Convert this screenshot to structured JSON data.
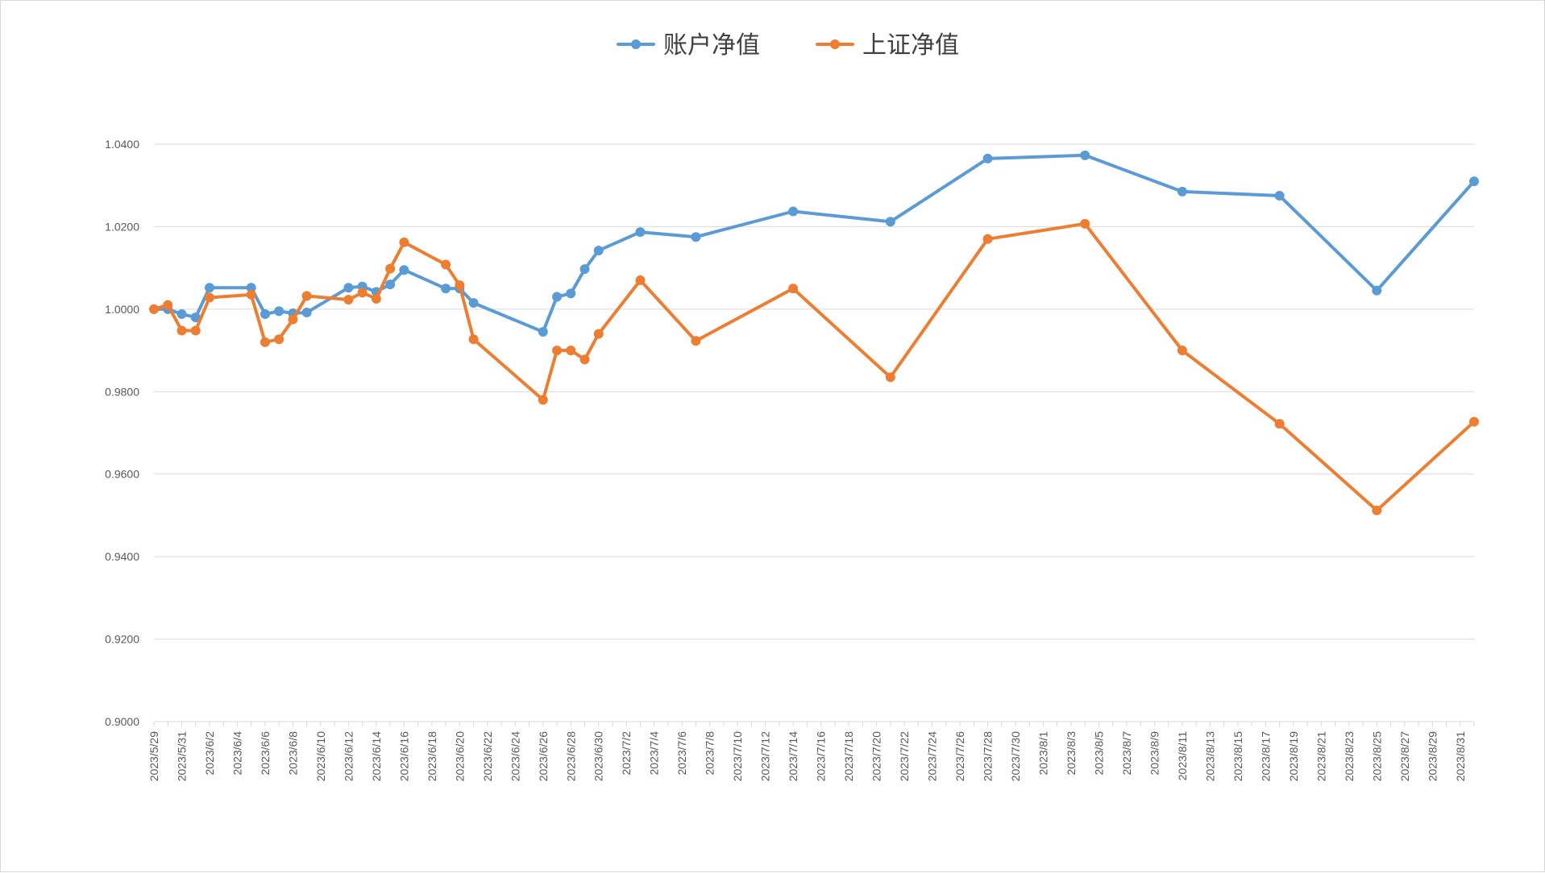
{
  "chart_data": {
    "type": "line",
    "title": "",
    "xlabel": "",
    "ylabel": "",
    "ylim": [
      0.9,
      1.04
    ],
    "yticks": [
      "0.9000",
      "0.9200",
      "0.9400",
      "0.9600",
      "0.9800",
      "1.0000",
      "1.0200",
      "1.0400"
    ],
    "grid": true,
    "legend_position": "top-center",
    "x_start": "2023/5/29",
    "x_end": "2023/9/1",
    "xtick_labels": [
      "2023/5/29",
      "2023/5/31",
      "2023/6/2",
      "2023/6/4",
      "2023/6/6",
      "2023/6/8",
      "2023/6/10",
      "2023/6/12",
      "2023/6/14",
      "2023/6/16",
      "2023/6/18",
      "2023/6/20",
      "2023/6/22",
      "2023/6/24",
      "2023/6/26",
      "2023/6/28",
      "2023/6/30",
      "2023/7/2",
      "2023/7/4",
      "2023/7/6",
      "2023/7/8",
      "2023/7/10",
      "2023/7/12",
      "2023/7/14",
      "2023/7/16",
      "2023/7/18",
      "2023/7/20",
      "2023/7/22",
      "2023/7/24",
      "2023/7/26",
      "2023/7/28",
      "2023/7/30",
      "2023/8/1",
      "2023/8/3",
      "2023/8/5",
      "2023/8/7",
      "2023/8/9",
      "2023/8/11",
      "2023/8/13",
      "2023/8/15",
      "2023/8/17",
      "2023/8/19",
      "2023/8/21",
      "2023/8/23",
      "2023/8/25",
      "2023/8/27",
      "2023/8/29",
      "2023/8/31"
    ],
    "series": [
      {
        "name": "账户净值",
        "color": "#5b9bd5",
        "points": [
          {
            "x": "2023/5/29",
            "y": 1.0
          },
          {
            "x": "2023/5/30",
            "y": 1.0
          },
          {
            "x": "2023/5/31",
            "y": 0.9988
          },
          {
            "x": "2023/6/1",
            "y": 0.998
          },
          {
            "x": "2023/6/2",
            "y": 1.0052
          },
          {
            "x": "2023/6/5",
            "y": 1.0052
          },
          {
            "x": "2023/6/6",
            "y": 0.9988
          },
          {
            "x": "2023/6/7",
            "y": 0.9995
          },
          {
            "x": "2023/6/8",
            "y": 0.999
          },
          {
            "x": "2023/6/9",
            "y": 0.9992
          },
          {
            "x": "2023/6/12",
            "y": 1.0052
          },
          {
            "x": "2023/6/13",
            "y": 1.0055
          },
          {
            "x": "2023/6/14",
            "y": 1.0042
          },
          {
            "x": "2023/6/15",
            "y": 1.006
          },
          {
            "x": "2023/6/16",
            "y": 1.0095
          },
          {
            "x": "2023/6/19",
            "y": 1.005
          },
          {
            "x": "2023/6/20",
            "y": 1.005
          },
          {
            "x": "2023/6/21",
            "y": 1.0015
          },
          {
            "x": "2023/6/26",
            "y": 0.9945
          },
          {
            "x": "2023/6/27",
            "y": 1.003
          },
          {
            "x": "2023/6/28",
            "y": 1.0038
          },
          {
            "x": "2023/6/29",
            "y": 1.0097
          },
          {
            "x": "2023/6/30",
            "y": 1.0142
          },
          {
            "x": "2023/7/3",
            "y": 1.0187
          },
          {
            "x": "2023/7/7",
            "y": 1.0175
          },
          {
            "x": "2023/7/14",
            "y": 1.0237
          },
          {
            "x": "2023/7/21",
            "y": 1.0212
          },
          {
            "x": "2023/7/28",
            "y": 1.0365
          },
          {
            "x": "2023/8/4",
            "y": 1.0373
          },
          {
            "x": "2023/8/11",
            "y": 1.0285
          },
          {
            "x": "2023/8/18",
            "y": 1.0275
          },
          {
            "x": "2023/8/25",
            "y": 1.0045
          },
          {
            "x": "2023/9/1",
            "y": 1.031
          }
        ]
      },
      {
        "name": "上证净值",
        "color": "#ed7d31",
        "points": [
          {
            "x": "2023/5/29",
            "y": 1.0
          },
          {
            "x": "2023/5/30",
            "y": 1.001
          },
          {
            "x": "2023/5/31",
            "y": 0.9948
          },
          {
            "x": "2023/6/1",
            "y": 0.9948
          },
          {
            "x": "2023/6/2",
            "y": 1.0028
          },
          {
            "x": "2023/6/5",
            "y": 1.0035
          },
          {
            "x": "2023/6/6",
            "y": 0.992
          },
          {
            "x": "2023/6/7",
            "y": 0.9927
          },
          {
            "x": "2023/6/8",
            "y": 0.9975
          },
          {
            "x": "2023/6/9",
            "y": 1.0032
          },
          {
            "x": "2023/6/12",
            "y": 1.0023
          },
          {
            "x": "2023/6/13",
            "y": 1.004
          },
          {
            "x": "2023/6/14",
            "y": 1.0025
          },
          {
            "x": "2023/6/15",
            "y": 1.0098
          },
          {
            "x": "2023/6/16",
            "y": 1.0162
          },
          {
            "x": "2023/6/19",
            "y": 1.0108
          },
          {
            "x": "2023/6/20",
            "y": 1.0058
          },
          {
            "x": "2023/6/21",
            "y": 0.9927
          },
          {
            "x": "2023/6/26",
            "y": 0.978
          },
          {
            "x": "2023/6/27",
            "y": 0.99
          },
          {
            "x": "2023/6/28",
            "y": 0.99
          },
          {
            "x": "2023/6/29",
            "y": 0.9878
          },
          {
            "x": "2023/6/30",
            "y": 0.994
          },
          {
            "x": "2023/7/3",
            "y": 1.007
          },
          {
            "x": "2023/7/7",
            "y": 0.9923
          },
          {
            "x": "2023/7/14",
            "y": 1.005
          },
          {
            "x": "2023/7/21",
            "y": 0.9835
          },
          {
            "x": "2023/7/28",
            "y": 1.017
          },
          {
            "x": "2023/8/4",
            "y": 1.0207
          },
          {
            "x": "2023/8/11",
            "y": 0.99
          },
          {
            "x": "2023/8/18",
            "y": 0.9722
          },
          {
            "x": "2023/8/25",
            "y": 0.9512
          },
          {
            "x": "2023/9/1",
            "y": 0.9727
          }
        ]
      }
    ]
  }
}
